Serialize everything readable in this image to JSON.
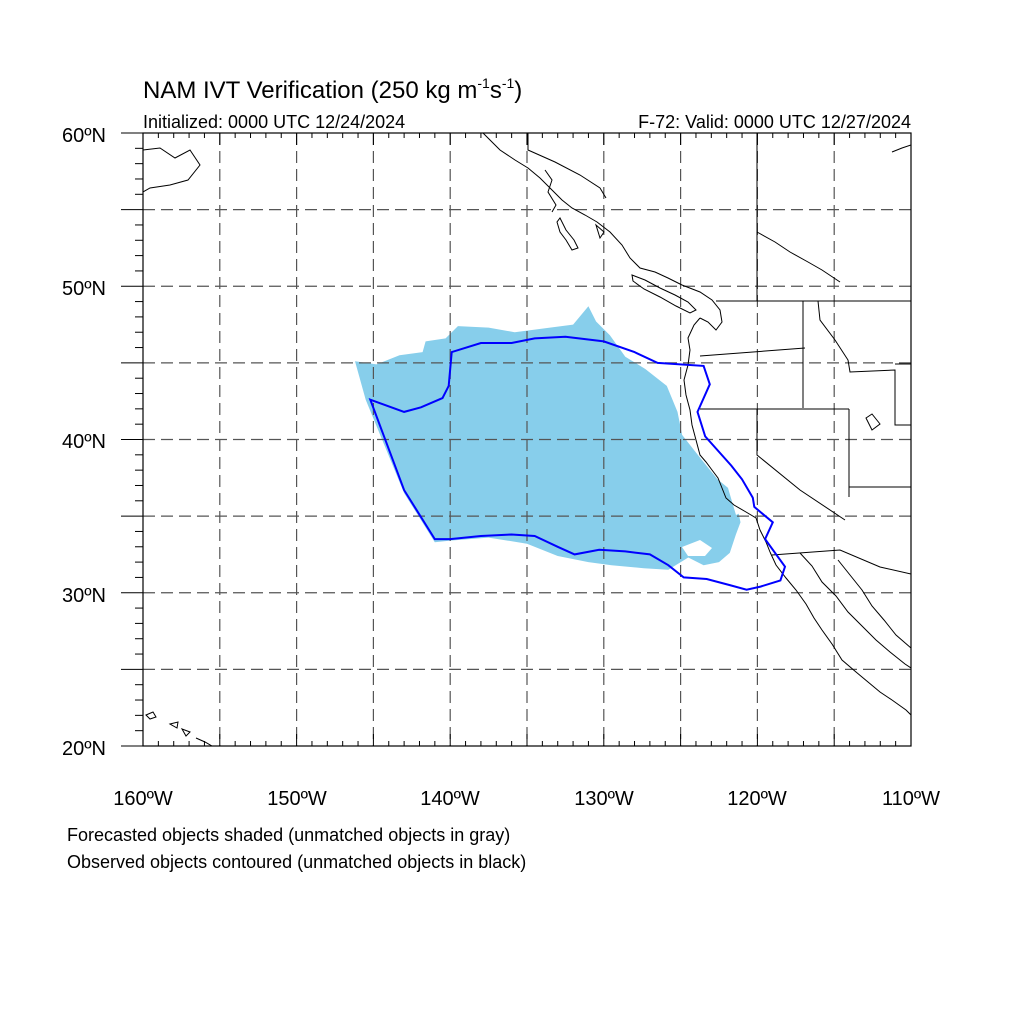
{
  "title": {
    "main": "NAM IVT Verification (250 kg m",
    "exp1": "-1",
    "mid": "s",
    "exp2": "-1",
    "close": ")"
  },
  "init_label": "Initialized: 0000 UTC 12/24/2024",
  "valid_label": "F-72: Valid: 0000 UTC 12/27/2024",
  "lat_labels": [
    "60ºN",
    "50ºN",
    "40ºN",
    "30ºN",
    "20ºN"
  ],
  "lon_labels": [
    "160ºW",
    "150ºW",
    "140ºW",
    "130ºW",
    "120ºW",
    "110ºW"
  ],
  "footnotes": {
    "line1": "Forecasted objects shaded (unmatched objects in gray)",
    "line2": "Observed objects contoured (unmatched objects in black)"
  },
  "extent": {
    "lon_min": -160,
    "lon_max": -110,
    "lat_min": 20,
    "lat_max": 60
  },
  "colors": {
    "forecast_fill": "#87ceeb",
    "observed_contour": "#0000ff",
    "coast": "#000000",
    "grid": "#555555"
  },
  "forecast_object": [
    [
      -146.2,
      45.1
    ],
    [
      -144.8,
      44.9
    ],
    [
      -143.3,
      45.5
    ],
    [
      -141.8,
      45.7
    ],
    [
      -141.6,
      46.4
    ],
    [
      -140.3,
      46.6
    ],
    [
      -139.5,
      47.4
    ],
    [
      -137.5,
      47.3
    ],
    [
      -135.8,
      47.0
    ],
    [
      -133.5,
      47.3
    ],
    [
      -132.0,
      47.5
    ],
    [
      -131.0,
      48.7
    ],
    [
      -130.5,
      47.7
    ],
    [
      -129.6,
      46.8
    ],
    [
      -128.6,
      45.4
    ],
    [
      -127.3,
      44.6
    ],
    [
      -125.9,
      43.5
    ],
    [
      -125.2,
      41.8
    ],
    [
      -124.9,
      40.3
    ],
    [
      -123.8,
      38.9
    ],
    [
      -122.6,
      37.4
    ],
    [
      -121.5,
      36.5
    ],
    [
      -121.1,
      34.6
    ],
    [
      -121.4,
      33.8
    ],
    [
      -121.8,
      32.6
    ],
    [
      -122.5,
      32.0
    ],
    [
      -123.5,
      31.8
    ],
    [
      -124.5,
      32.3
    ],
    [
      -125.8,
      31.5
    ],
    [
      -127.4,
      31.6
    ],
    [
      -129.5,
      31.8
    ],
    [
      -131.0,
      32.0
    ],
    [
      -133.0,
      32.4
    ],
    [
      -135.0,
      33.2
    ],
    [
      -137.5,
      33.6
    ],
    [
      -140.0,
      33.4
    ],
    [
      -141.0,
      33.3
    ],
    [
      -143.0,
      36.5
    ],
    [
      -145.5,
      42.6
    ],
    [
      -146.2,
      45.1
    ]
  ],
  "observed_object": [
    [
      -145.2,
      42.6
    ],
    [
      -143.0,
      41.8
    ],
    [
      -141.9,
      42.1
    ],
    [
      -140.5,
      42.7
    ],
    [
      -140.1,
      43.5
    ],
    [
      -139.9,
      45.7
    ],
    [
      -138.0,
      46.3
    ],
    [
      -136.0,
      46.3
    ],
    [
      -134.5,
      46.6
    ],
    [
      -132.5,
      46.7
    ],
    [
      -130.0,
      46.4
    ],
    [
      -128.0,
      45.7
    ],
    [
      -126.5,
      45.0
    ],
    [
      -123.5,
      44.8
    ],
    [
      -123.1,
      43.6
    ],
    [
      -123.9,
      41.8
    ],
    [
      -123.4,
      40.2
    ],
    [
      -121.7,
      38.3
    ],
    [
      -121.0,
      37.4
    ],
    [
      -120.3,
      36.2
    ],
    [
      -120.2,
      35.6
    ],
    [
      -119.0,
      34.6
    ],
    [
      -119.5,
      33.5
    ],
    [
      -118.2,
      31.7
    ],
    [
      -118.5,
      30.8
    ],
    [
      -119.8,
      30.4
    ],
    [
      -120.7,
      30.2
    ],
    [
      -121.8,
      30.5
    ],
    [
      -123.3,
      30.9
    ],
    [
      -124.8,
      31.0
    ],
    [
      -125.8,
      31.8
    ],
    [
      -127.0,
      32.5
    ],
    [
      -128.6,
      32.7
    ],
    [
      -130.3,
      32.8
    ],
    [
      -131.9,
      32.5
    ],
    [
      -133.0,
      33.0
    ],
    [
      -134.5,
      33.7
    ],
    [
      -136.0,
      33.8
    ],
    [
      -138.0,
      33.7
    ],
    [
      -140.0,
      33.5
    ],
    [
      -141.0,
      33.5
    ],
    [
      -143.0,
      36.7
    ],
    [
      -145.2,
      42.6
    ]
  ]
}
